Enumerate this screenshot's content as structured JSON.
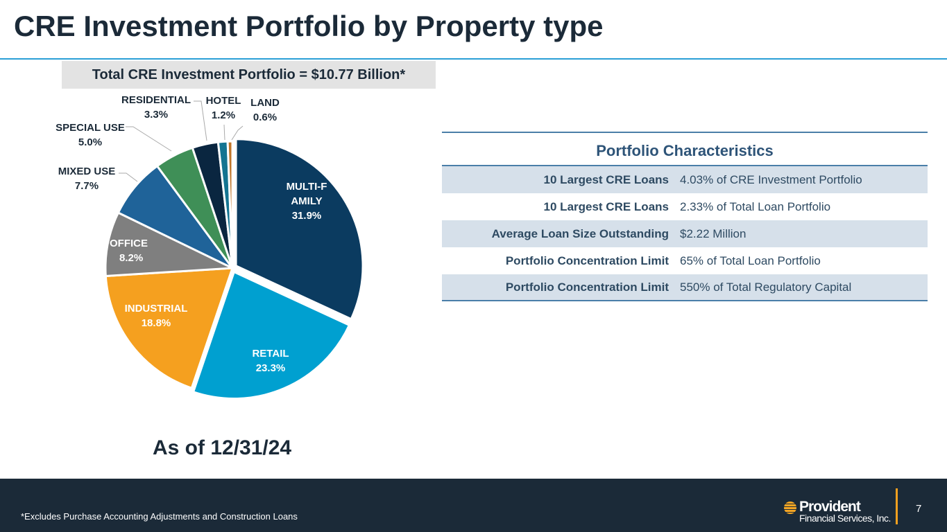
{
  "title": "CRE Investment Portfolio by Property type",
  "total_banner": "Total CRE Investment Portfolio = $10.77 Billion*",
  "as_of": "As of 12/31/24",
  "chart_data": {
    "type": "pie",
    "title": "Total CRE Investment Portfolio = $10.77 Billion*",
    "categories": [
      "MULTI-FAMILY",
      "RETAIL",
      "INDUSTRIAL",
      "OFFICE",
      "MIXED USE",
      "SPECIAL USE",
      "RESIDENTIAL",
      "HOTEL",
      "LAND"
    ],
    "values": [
      31.9,
      23.3,
      18.8,
      8.2,
      7.7,
      5.0,
      3.3,
      1.2,
      0.6
    ],
    "value_labels": [
      "31.9%",
      "23.3%",
      "18.8%",
      "8.2%",
      "7.7%",
      "5.0%",
      "3.3%",
      "1.2%",
      "0.6%"
    ],
    "colors": [
      "#0b3b60",
      "#00a0d0",
      "#f5a01f",
      "#7f7f7f",
      "#1f6399",
      "#3f8f57",
      "#0a2640",
      "#147491",
      "#c0762a"
    ]
  },
  "characteristics": {
    "heading": "Portfolio Characteristics",
    "rows": [
      {
        "label": "10 Largest CRE Loans",
        "value": "4.03% of CRE Investment Portfolio"
      },
      {
        "label": "10 Largest CRE Loans",
        "value": "2.33% of Total Loan Portfolio"
      },
      {
        "label": "Average Loan Size Outstanding",
        "value": "$2.22 Million"
      },
      {
        "label": "Portfolio Concentration Limit",
        "value": "65% of Total Loan Portfolio"
      },
      {
        "label": "Portfolio Concentration Limit",
        "value": "550% of Total Regulatory Capital"
      }
    ]
  },
  "footer": {
    "footnote": "*Excludes Purchase Accounting Adjustments and Construction Loans",
    "logo_name": "Provident",
    "logo_sub": "Financial Services, Inc.",
    "page": "7"
  }
}
